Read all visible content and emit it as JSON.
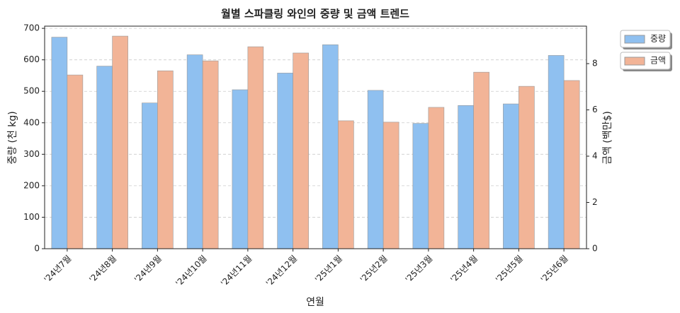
{
  "chart_data": {
    "type": "bar",
    "title": "월별 스파클링 와인의 중량 및 금액 트렌드",
    "x_label": "연월",
    "y_label": "중량 (천 kg)",
    "y2_label": "금액 (백만$)",
    "categories": [
      "'24년7월",
      "'24년8월",
      "'24년9월",
      "'24년10월",
      "'24년11월",
      "'24년12월",
      "'25년1월",
      "'25년2월",
      "'25년3월",
      "'25년4월",
      "'25년5월",
      "'25년6월"
    ],
    "series": [
      {
        "name": "중량",
        "color": "#8fc0f0",
        "values": [
          672,
          580,
          463,
          616,
          505,
          558,
          648,
          503,
          398,
          455,
          460,
          614
        ]
      },
      {
        "name": "금액",
        "color": "#f2b497",
        "axis": "y2",
        "values": [
          7.51,
          9.19,
          7.69,
          8.12,
          8.73,
          8.46,
          5.53,
          5.47,
          6.11,
          7.63,
          7.02,
          7.27
        ]
      }
    ],
    "ylim": [
      0,
      707
    ],
    "yticks": [
      0,
      100,
      200,
      300,
      400,
      500,
      600,
      700
    ],
    "y2lim": [
      0,
      9.62
    ],
    "y2ticks": [
      0,
      2,
      4,
      6,
      8
    ],
    "grid": true,
    "legend": "outside-upper-right"
  }
}
